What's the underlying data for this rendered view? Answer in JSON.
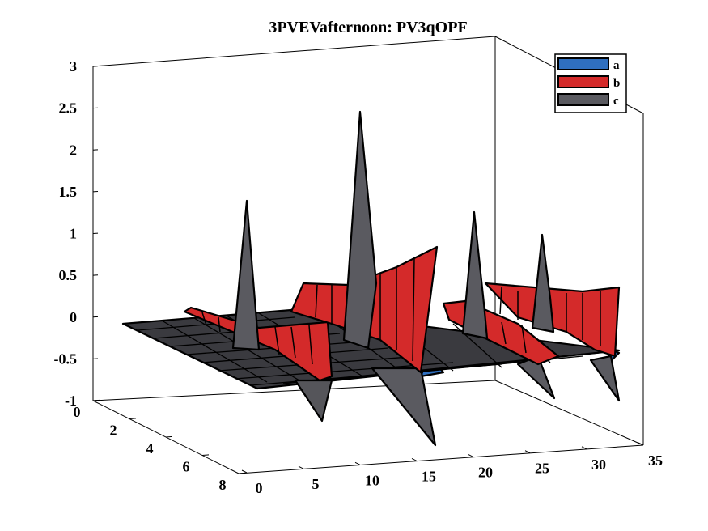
{
  "chart_data": {
    "type": "surface3d",
    "title": "3PVEVafternoon: PV3qOPF",
    "xlabel": "",
    "ylabel": "",
    "zlabel": "",
    "xlim": [
      0,
      35
    ],
    "ylim": [
      0,
      8
    ],
    "zlim": [
      -1,
      3
    ],
    "x_ticks": [
      "0",
      "5",
      "10",
      "15",
      "20",
      "25",
      "30",
      "35"
    ],
    "y_ticks": [
      "0",
      "2",
      "4",
      "6",
      "8"
    ],
    "z_ticks": [
      "-1",
      "-0.5",
      "0",
      "0.5",
      "1",
      "1.5",
      "2",
      "2.5",
      "3"
    ],
    "grid": false,
    "legend_position": "top-right",
    "series": [
      {
        "name": "a",
        "color": "#2f6fbf",
        "description": "flat surface near zero with small dips",
        "points": [
          [
            15,
            8,
            -0.6
          ],
          [
            30,
            8,
            -0.45
          ]
        ]
      },
      {
        "name": "b",
        "color": "#d42a2a",
        "ridges": [
          {
            "x": [
              3,
              7
            ],
            "y_start": 6,
            "y_end": 2,
            "z_start": 0.3,
            "z_end": 0.3
          },
          {
            "x": [
              8,
              14
            ],
            "y_start": 6,
            "y_end": 2,
            "z_start": 0.45,
            "z_end": 0.55
          },
          {
            "x": [
              17,
              21
            ],
            "y_start": 6,
            "y_end": 2,
            "z_start": 0.35,
            "z_end": 0.35
          },
          {
            "x": [
              22,
              29
            ],
            "y_start": 6,
            "y_end": 2,
            "z_start": 0.3,
            "z_end": 0.3
          }
        ]
      },
      {
        "name": "c",
        "color": "#5a5a60",
        "peaks": [
          {
            "x": 6,
            "y": 4,
            "z": 1.55
          },
          {
            "x": 12,
            "y": 4,
            "z": 2.45
          },
          {
            "x": 20,
            "y": 4,
            "z": 1.15
          },
          {
            "x": 26,
            "y": 4,
            "z": 0.95
          }
        ],
        "dips": [
          {
            "x": 11,
            "y": 7,
            "z": -1.4
          },
          {
            "x": 16,
            "y": 8,
            "z": -1.8
          },
          {
            "x": 25,
            "y": 8,
            "z": -1.15
          },
          {
            "x": 30,
            "y": 8,
            "z": -1.15
          }
        ]
      }
    ]
  }
}
